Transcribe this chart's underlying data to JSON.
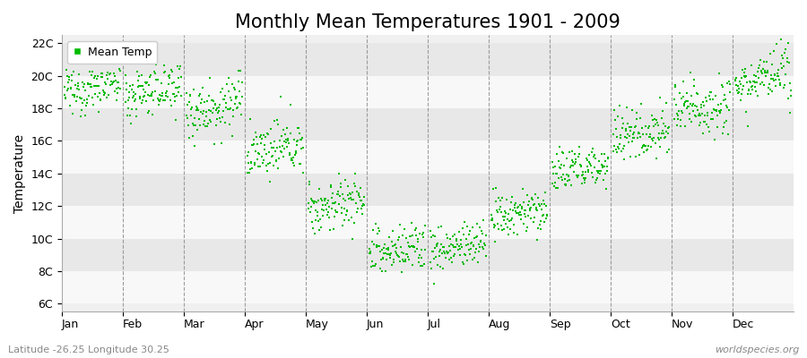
{
  "title": "Monthly Mean Temperatures 1901 - 2009",
  "ylabel": "Temperature",
  "xlabel_months": [
    "Jan",
    "Feb",
    "Mar",
    "Apr",
    "May",
    "Jun",
    "Jul",
    "Aug",
    "Sep",
    "Oct",
    "Nov",
    "Dec"
  ],
  "ytick_labels": [
    "6C",
    "8C",
    "10C",
    "12C",
    "14C",
    "16C",
    "18C",
    "20C",
    "22C"
  ],
  "ytick_values": [
    6,
    8,
    10,
    12,
    14,
    16,
    18,
    20,
    22
  ],
  "ylim": [
    5.5,
    22.5
  ],
  "dot_color": "#00bb00",
  "fig_bg_color": "#ffffff",
  "plot_bg_color": "#f0f0f0",
  "band_color_light": "#f8f8f8",
  "band_color_dark": "#e8e8e8",
  "legend_label": "Mean Temp",
  "footer_left": "Latitude -26.25 Longitude 30.25",
  "footer_right": "worldspecies.org",
  "n_years": 109,
  "year_start": 1901,
  "year_end": 2009,
  "monthly_means": [
    19.0,
    18.8,
    17.8,
    15.2,
    11.8,
    9.0,
    9.2,
    11.2,
    14.0,
    16.2,
    17.8,
    19.5
  ],
  "monthly_stds": [
    0.7,
    0.8,
    0.9,
    0.8,
    0.8,
    0.8,
    0.7,
    0.7,
    0.7,
    0.8,
    0.9,
    0.8
  ],
  "warming_trend": 0.006,
  "title_fontsize": 15,
  "axis_fontsize": 10,
  "tick_fontsize": 9,
  "footer_fontsize": 8
}
